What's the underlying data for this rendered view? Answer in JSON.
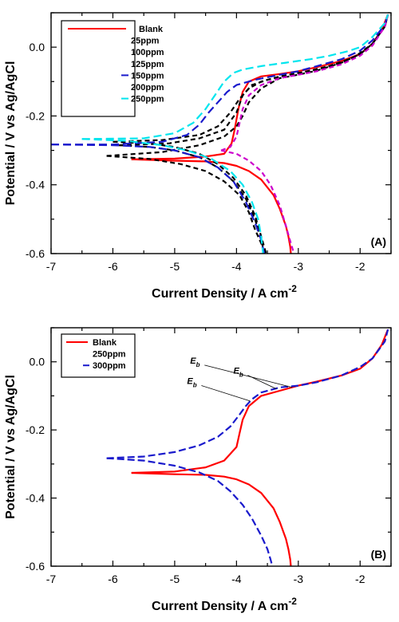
{
  "chart_data": [
    {
      "type": "line",
      "panel_label": "(A)",
      "xlabel": "Current Density / A cm",
      "xlabel_sup": "-2",
      "ylabel": "Potential / V vs Ag/AgCl",
      "xlim": [
        -7,
        -1.5
      ],
      "ylim": [
        -0.6,
        0.1
      ],
      "xticks": [
        -7,
        -6,
        -5,
        -4,
        -3,
        -2
      ],
      "yticks": [
        -0.6,
        -0.4,
        -0.2,
        0.0
      ],
      "ytick_labels": [
        "-0.6",
        "-0.4",
        "-0.2",
        "0.0"
      ],
      "legend_position": "top-left",
      "series": [
        {
          "name": "Blank",
          "color": "#ff0000",
          "dash": "solid",
          "x": [
            -5.7,
            -5.0,
            -4.5,
            -4.2,
            -4.08,
            -4.03,
            -3.97,
            -3.9,
            -3.8,
            -3.6,
            -3.3,
            -3.0,
            -2.7,
            -2.3,
            -2.0,
            -1.8,
            -1.65,
            -1.55
          ],
          "y": [
            -0.326,
            -0.324,
            -0.318,
            -0.31,
            -0.28,
            -0.24,
            -0.18,
            -0.13,
            -0.1,
            -0.085,
            -0.078,
            -0.07,
            -0.058,
            -0.04,
            -0.02,
            0.01,
            0.05,
            0.095
          ],
          "x2": [
            -5.7,
            -5.0,
            -4.5,
            -4.2,
            -4.0,
            -3.8,
            -3.6,
            -3.4,
            -3.3,
            -3.2,
            -3.16,
            -3.13,
            -3.12
          ],
          "y2": [
            -0.326,
            -0.33,
            -0.332,
            -0.337,
            -0.345,
            -0.36,
            -0.385,
            -0.43,
            -0.47,
            -0.52,
            -0.55,
            -0.58,
            -0.6
          ]
        },
        {
          "name": "25ppm",
          "color": "#000000",
          "dash": "6,4",
          "x": [
            -6.1,
            -5.2,
            -4.6,
            -4.2,
            -4.0,
            -3.9,
            -3.8,
            -3.6,
            -3.3,
            -3.0,
            -2.7,
            -2.3,
            -2.0,
            -1.8,
            -1.6,
            -1.55
          ],
          "y": [
            -0.316,
            -0.305,
            -0.285,
            -0.26,
            -0.23,
            -0.2,
            -0.16,
            -0.12,
            -0.09,
            -0.08,
            -0.068,
            -0.045,
            -0.02,
            0.01,
            0.06,
            0.095
          ],
          "x2": [
            -6.1,
            -5.4,
            -4.9,
            -4.5,
            -4.2,
            -3.95,
            -3.8,
            -3.7,
            -3.6,
            -3.55
          ],
          "y2": [
            -0.316,
            -0.325,
            -0.34,
            -0.36,
            -0.39,
            -0.43,
            -0.48,
            -0.53,
            -0.57,
            -0.6
          ]
        },
        {
          "name": "100ppm",
          "color": "#000000",
          "dash": "6,4",
          "x": [
            -6.0,
            -5.2,
            -4.6,
            -4.3,
            -4.1,
            -3.95,
            -3.8,
            -3.6,
            -3.3,
            -3.0,
            -2.7,
            -2.3,
            -2.0,
            -1.8,
            -1.6,
            -1.55
          ],
          "y": [
            -0.275,
            -0.27,
            -0.255,
            -0.23,
            -0.19,
            -0.15,
            -0.12,
            -0.1,
            -0.085,
            -0.075,
            -0.065,
            -0.045,
            -0.02,
            0.01,
            0.06,
            0.095
          ],
          "x2": [
            -6.0,
            -5.4,
            -5.0,
            -4.6,
            -4.3,
            -4.05,
            -3.85,
            -3.7,
            -3.6,
            -3.52
          ],
          "y2": [
            -0.275,
            -0.28,
            -0.29,
            -0.31,
            -0.34,
            -0.38,
            -0.43,
            -0.49,
            -0.55,
            -0.6
          ]
        },
        {
          "name": "125ppm",
          "color": "#000000",
          "dash": "6,4",
          "x": [
            -5.9,
            -5.1,
            -4.6,
            -4.2,
            -4.0,
            -3.9,
            -3.75,
            -3.5,
            -3.2,
            -2.9,
            -2.5,
            -2.1,
            -1.8,
            -1.6,
            -1.55
          ],
          "y": [
            -0.285,
            -0.28,
            -0.265,
            -0.24,
            -0.19,
            -0.14,
            -0.11,
            -0.095,
            -0.082,
            -0.072,
            -0.055,
            -0.03,
            0.01,
            0.06,
            0.095
          ],
          "x2": [
            -5.9,
            -5.4,
            -5.0,
            -4.6,
            -4.3,
            -4.05,
            -3.85,
            -3.7,
            -3.6,
            -3.55
          ],
          "y2": [
            -0.285,
            -0.29,
            -0.3,
            -0.32,
            -0.35,
            -0.39,
            -0.44,
            -0.5,
            -0.56,
            -0.6
          ]
        },
        {
          "name": "150ppm",
          "color": "#1a1acc",
          "dash": "10,5",
          "x": [
            -7.0,
            -6.0,
            -5.2,
            -4.8,
            -4.6,
            -4.45,
            -4.3,
            -4.15,
            -4.0,
            -3.7,
            -3.3,
            -3.0,
            -2.7,
            -2.3,
            -2.0,
            -1.8,
            -1.6,
            -1.55
          ],
          "y": [
            -0.283,
            -0.283,
            -0.275,
            -0.255,
            -0.225,
            -0.19,
            -0.16,
            -0.13,
            -0.11,
            -0.095,
            -0.08,
            -0.07,
            -0.055,
            -0.035,
            -0.01,
            0.02,
            0.065,
            0.095
          ],
          "x2": [
            -7.0,
            -6.0,
            -5.4,
            -5.0,
            -4.6,
            -4.3,
            -4.05,
            -3.85,
            -3.7,
            -3.6,
            -3.55
          ],
          "y2": [
            -0.283,
            -0.285,
            -0.29,
            -0.3,
            -0.32,
            -0.35,
            -0.39,
            -0.45,
            -0.51,
            -0.56,
            -0.6
          ]
        },
        {
          "name": "200ppm",
          "color": "#cc00cc",
          "dash": "6,4",
          "x": [
            -4.25,
            -4.1,
            -4.0,
            -3.95,
            -3.9,
            -3.8,
            -3.6,
            -3.3,
            -3.0,
            -2.7,
            -2.3,
            -2.0,
            -1.8,
            -1.6,
            -1.55
          ],
          "y": [
            -0.3,
            -0.29,
            -0.26,
            -0.22,
            -0.18,
            -0.14,
            -0.11,
            -0.09,
            -0.08,
            -0.07,
            -0.05,
            -0.025,
            0.005,
            0.06,
            0.095
          ],
          "x2": [
            -4.25,
            -4.0,
            -3.8,
            -3.6,
            -3.45,
            -3.3,
            -3.2,
            -3.12,
            -3.07
          ],
          "y2": [
            -0.3,
            -0.31,
            -0.33,
            -0.36,
            -0.4,
            -0.46,
            -0.52,
            -0.57,
            -0.6
          ]
        },
        {
          "name": "250ppm",
          "color": "#00e5ee",
          "dash": "10,5",
          "x": [
            -6.5,
            -5.5,
            -5.0,
            -4.7,
            -4.5,
            -4.35,
            -4.2,
            -4.05,
            -3.9,
            -3.6,
            -3.2,
            -2.8,
            -2.5,
            -2.2,
            -2.0,
            -1.8,
            -1.6,
            -1.55
          ],
          "y": [
            -0.267,
            -0.265,
            -0.25,
            -0.22,
            -0.18,
            -0.14,
            -0.1,
            -0.075,
            -0.065,
            -0.055,
            -0.045,
            -0.035,
            -0.025,
            -0.012,
            0.0,
            0.03,
            0.07,
            0.095
          ],
          "x2": [
            -6.5,
            -5.8,
            -5.2,
            -4.8,
            -4.4,
            -4.1,
            -3.9,
            -3.75,
            -3.65,
            -3.6,
            -3.57
          ],
          "y2": [
            -0.267,
            -0.272,
            -0.285,
            -0.3,
            -0.325,
            -0.36,
            -0.4,
            -0.45,
            -0.5,
            -0.55,
            -0.6
          ]
        }
      ]
    },
    {
      "type": "line",
      "panel_label": "(B)",
      "xlabel": "Current Density / A cm",
      "xlabel_sup": "-2",
      "ylabel": "Potential / V vs Ag/AgCl",
      "xlim": [
        -7,
        -1.5
      ],
      "ylim": [
        -0.6,
        0.1
      ],
      "xticks": [
        -7,
        -6,
        -5,
        -4,
        -3,
        -2
      ],
      "yticks": [
        -0.6,
        -0.4,
        -0.2,
        0.0
      ],
      "ytick_labels": [
        "-0.6",
        "-0.4",
        "-0.2",
        "0.0"
      ],
      "legend_position": "top-left",
      "annotation_label": "E",
      "annotation_sub": "b",
      "annotations": [
        {
          "x": -4.75,
          "y": -0.005,
          "target_x": -3.1,
          "target_y": -0.075
        },
        {
          "x": -4.05,
          "y": -0.035,
          "target_x": -3.35,
          "target_y": -0.08
        },
        {
          "x": -4.8,
          "y": -0.065,
          "target_x": -3.78,
          "target_y": -0.115
        }
      ],
      "series": [
        {
          "name": "Blank",
          "color": "#ff0000",
          "dash": "solid",
          "x": [
            -5.7,
            -5.0,
            -4.5,
            -4.2,
            -4.0,
            -3.95,
            -3.9,
            -3.8,
            -3.6,
            -3.3,
            -3.0,
            -2.7,
            -2.3,
            -2.0,
            -1.8,
            -1.65,
            -1.55
          ],
          "y": [
            -0.326,
            -0.322,
            -0.31,
            -0.29,
            -0.25,
            -0.21,
            -0.17,
            -0.13,
            -0.1,
            -0.085,
            -0.07,
            -0.058,
            -0.04,
            -0.02,
            0.01,
            0.05,
            0.095
          ],
          "x2": [
            -5.7,
            -5.0,
            -4.5,
            -4.2,
            -4.0,
            -3.8,
            -3.6,
            -3.4,
            -3.3,
            -3.2,
            -3.16,
            -3.13,
            -3.12
          ],
          "y2": [
            -0.326,
            -0.33,
            -0.332,
            -0.337,
            -0.345,
            -0.36,
            -0.385,
            -0.43,
            -0.47,
            -0.52,
            -0.55,
            -0.58,
            -0.6
          ]
        },
        {
          "name": "250ppm",
          "color": "#ffffff",
          "dash": "none",
          "x": [],
          "y": [],
          "x2": [],
          "y2": []
        },
        {
          "name": "300ppm",
          "color": "#1a1acc",
          "dash": "9,4",
          "x": [
            -6.1,
            -5.5,
            -5.0,
            -4.6,
            -4.3,
            -4.1,
            -3.95,
            -3.85,
            -3.75,
            -3.6,
            -3.3,
            -3.0,
            -2.7,
            -2.3,
            -2.0,
            -1.8,
            -1.6,
            -1.55
          ],
          "y": [
            -0.283,
            -0.278,
            -0.265,
            -0.245,
            -0.22,
            -0.19,
            -0.155,
            -0.13,
            -0.11,
            -0.09,
            -0.075,
            -0.07,
            -0.06,
            -0.04,
            -0.015,
            0.01,
            0.06,
            0.095
          ],
          "x2": [
            -6.1,
            -5.5,
            -5.0,
            -4.6,
            -4.3,
            -4.1,
            -3.9,
            -3.75,
            -3.6,
            -3.5,
            -3.45,
            -3.42
          ],
          "y2": [
            -0.283,
            -0.29,
            -0.305,
            -0.325,
            -0.35,
            -0.38,
            -0.42,
            -0.46,
            -0.51,
            -0.55,
            -0.58,
            -0.6
          ]
        }
      ]
    }
  ]
}
